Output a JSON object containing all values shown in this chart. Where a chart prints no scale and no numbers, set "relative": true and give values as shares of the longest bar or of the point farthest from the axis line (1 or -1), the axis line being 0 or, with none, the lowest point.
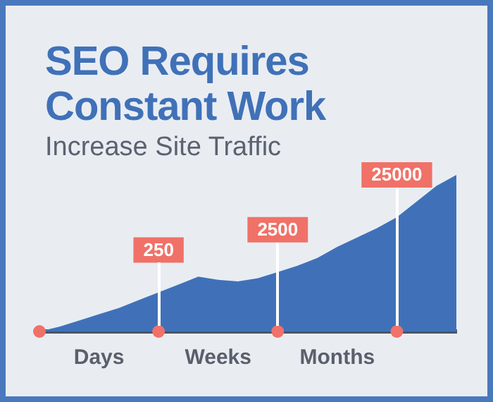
{
  "chart_data": {
    "type": "area",
    "title": "SEO Requires Constant Work",
    "subtitle": "Increase Site Traffic",
    "relative": true,
    "categories": [
      null,
      null,
      null,
      "Days",
      null,
      null,
      null,
      null,
      null,
      "Weeks",
      null,
      null,
      null,
      null,
      null,
      "Months",
      null,
      null,
      null,
      null,
      null,
      null
    ],
    "series": [
      {
        "color": "#4071b8",
        "values": [
          0,
          0.03,
          0.07,
          0.11,
          0.15,
          0.2,
          0.25,
          0.3,
          0.35,
          0.33,
          0.32,
          0.34,
          0.38,
          0.42,
          0.47,
          0.54,
          0.6,
          0.66,
          0.73,
          0.83,
          0.93,
          1
        ]
      },
      {
        "type": "scatter",
        "color": "#f07167",
        "marker": "circle",
        "values": [
          0,
          null,
          null,
          null,
          null,
          null,
          0,
          null,
          null,
          null,
          null,
          null,
          0,
          null,
          null,
          null,
          null,
          null,
          0,
          null,
          null,
          null
        ]
      }
    ],
    "annotations": [
      "250",
      "2500",
      "25000"
    ]
  }
}
